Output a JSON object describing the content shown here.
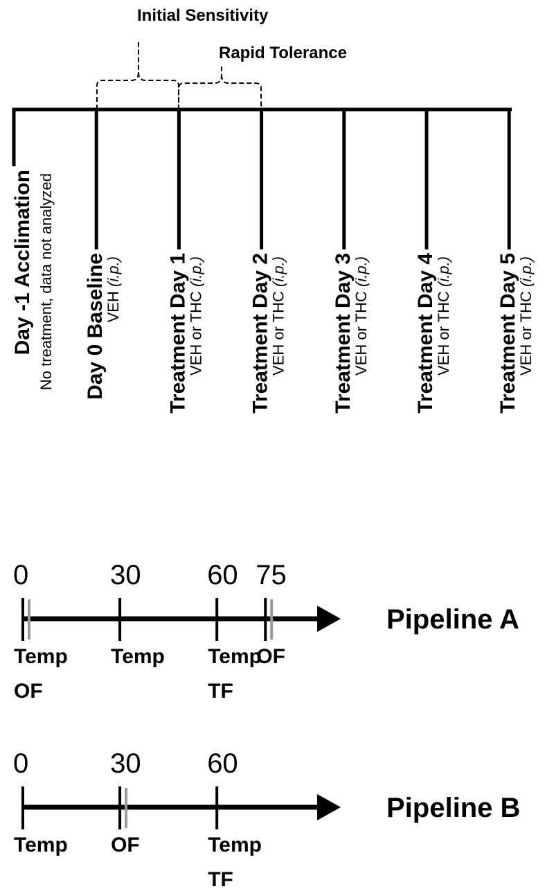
{
  "brackets": [
    {
      "label": "Initial Sensitivity"
    },
    {
      "label": "Rapid Tolerance"
    }
  ],
  "timeline": [
    {
      "title": "Day -1 Acclimation",
      "note": "No treatment,  data not analyzed"
    },
    {
      "title": "Day 0 Baseline",
      "note": "VEH",
      "route": "(i.p.)"
    },
    {
      "title": "Treatment Day 1",
      "note": "VEH or THC",
      "route": "(i.p.)"
    },
    {
      "title": "Treatment Day 2",
      "note": "VEH or THC",
      "route": "(i.p.)"
    },
    {
      "title": "Treatment Day 3",
      "note": "VEH or THC",
      "route": "(i.p.)"
    },
    {
      "title": "Treatment Day 4",
      "note": "VEH or THC",
      "route": "(i.p.)"
    },
    {
      "title": "Treatment Day 5",
      "note": "VEH or THC",
      "route": "(i.p.)"
    }
  ],
  "pipelines": [
    {
      "name": "Pipeline A",
      "steps": [
        {
          "time": 0,
          "labels": [
            "Temp",
            "OF"
          ]
        },
        {
          "time": 30,
          "labels": [
            "Temp"
          ]
        },
        {
          "time": 60,
          "labels": [
            "Temp",
            "TF"
          ]
        },
        {
          "time": 75,
          "labels": [
            "OF"
          ]
        }
      ]
    },
    {
      "name": "Pipeline B",
      "steps": [
        {
          "time": 0,
          "labels": [
            "Temp"
          ]
        },
        {
          "time": 30,
          "labels": [
            "OF"
          ]
        },
        {
          "time": 60,
          "labels": [
            "Temp",
            "TF"
          ]
        }
      ]
    }
  ]
}
